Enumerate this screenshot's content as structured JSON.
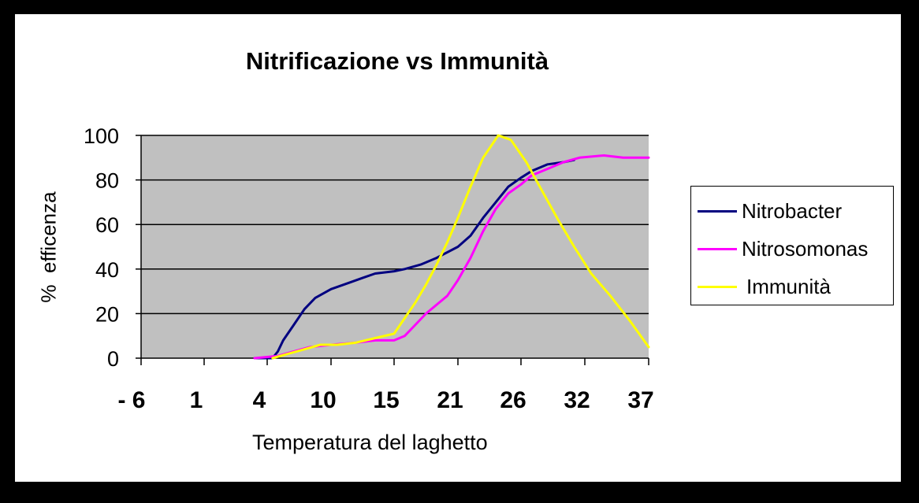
{
  "chart_data": {
    "type": "line",
    "title": "Nitrificazione vs Immunità",
    "xlabel": "Temperatura del laghetto",
    "ylabel": "%  efficenza",
    "x_tick_labels": [
      "- 6",
      "1",
      "4",
      "10",
      "15",
      "21",
      "26",
      "32",
      "37"
    ],
    "y_ticks": [
      0,
      20,
      40,
      60,
      80,
      100
    ],
    "ylim": [
      0,
      100
    ],
    "grid": "horizontal",
    "legend_placement": "right",
    "plot_background": "#c0c0c0",
    "series": [
      {
        "name": "Nitrobacter",
        "color": "#000080",
        "points": [
          [
            3.4,
            0
          ],
          [
            4.5,
            0
          ],
          [
            5.0,
            3
          ],
          [
            5.5,
            8
          ],
          [
            6.5,
            15
          ],
          [
            7.5,
            22
          ],
          [
            8.5,
            27
          ],
          [
            10,
            31
          ],
          [
            11.5,
            34
          ],
          [
            12.5,
            36
          ],
          [
            13.5,
            38
          ],
          [
            15,
            39
          ],
          [
            16,
            40
          ],
          [
            17.5,
            42
          ],
          [
            19,
            45
          ],
          [
            21,
            50
          ],
          [
            22,
            55
          ],
          [
            23,
            63
          ],
          [
            24,
            70
          ],
          [
            25,
            77
          ],
          [
            26,
            81
          ],
          [
            27,
            84
          ],
          [
            28.5,
            87
          ],
          [
            30,
            88
          ],
          [
            31,
            89
          ]
        ]
      },
      {
        "name": "Nitrosomonas",
        "color": "#ff00ff",
        "points": [
          [
            3.4,
            0
          ],
          [
            5.0,
            1
          ],
          [
            6.5,
            3
          ],
          [
            8,
            5
          ],
          [
            10,
            6
          ],
          [
            12,
            7
          ],
          [
            13.5,
            8
          ],
          [
            15,
            8
          ],
          [
            16,
            10
          ],
          [
            17,
            15
          ],
          [
            18,
            20
          ],
          [
            20,
            28
          ],
          [
            21,
            35
          ],
          [
            22,
            45
          ],
          [
            23,
            57
          ],
          [
            24,
            67
          ],
          [
            25,
            74
          ],
          [
            26,
            78
          ],
          [
            27,
            82
          ],
          [
            28.5,
            85
          ],
          [
            30,
            88
          ],
          [
            31.5,
            90
          ],
          [
            33.5,
            91
          ],
          [
            35,
            90
          ],
          [
            37,
            90
          ]
        ]
      },
      {
        "name": "Immunità",
        "color": "#ffff00",
        "points": [
          [
            4.5,
            0
          ],
          [
            6,
            2
          ],
          [
            7.5,
            4
          ],
          [
            9,
            6
          ],
          [
            10.5,
            6
          ],
          [
            12,
            7
          ],
          [
            13.5,
            9
          ],
          [
            15,
            11
          ],
          [
            16,
            18
          ],
          [
            17,
            25
          ],
          [
            18,
            33
          ],
          [
            19,
            42
          ],
          [
            20,
            52
          ],
          [
            21,
            63
          ],
          [
            22,
            77
          ],
          [
            23,
            90
          ],
          [
            24.2,
            100
          ],
          [
            25.2,
            98
          ],
          [
            26.5,
            88
          ],
          [
            28,
            75
          ],
          [
            29.5,
            62
          ],
          [
            31,
            50
          ],
          [
            32.5,
            38
          ],
          [
            34,
            28
          ],
          [
            35.5,
            17
          ],
          [
            37,
            5
          ]
        ]
      }
    ]
  }
}
